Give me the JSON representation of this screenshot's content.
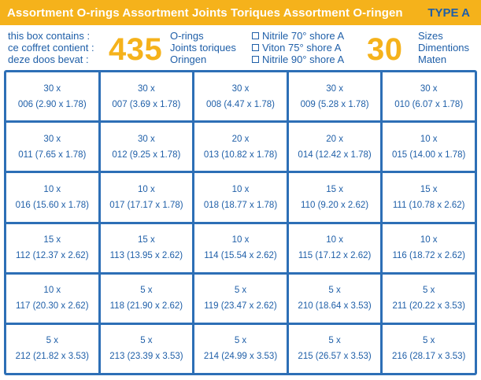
{
  "header": {
    "title": "Assortment O-rings Assortment Joints Toriques Assortment O-ringen",
    "type_label": "TYPE A"
  },
  "info": {
    "contains_lines": [
      "this box contains :",
      "ce coffret contient :",
      "deze doos bevat :"
    ],
    "oring_count": "435",
    "oring_names": [
      "O-rings",
      "Joints toriques",
      "Oringen"
    ],
    "materials": [
      "Nitrile 70° shore A",
      "Viton 75° shore A",
      "Nitrile 90° shore A"
    ],
    "size_count": "30",
    "size_names": [
      "Sizes",
      "Dimentions",
      "Maten"
    ]
  },
  "grid": {
    "cells": [
      {
        "qty": "30 x",
        "size": "006 (2.90 x 1.78)"
      },
      {
        "qty": "30 x",
        "size": "007 (3.69 x 1.78)"
      },
      {
        "qty": "30 x",
        "size": "008 (4.47 x 1.78)"
      },
      {
        "qty": "30 x",
        "size": "009 (5.28 x 1.78)"
      },
      {
        "qty": "30 x",
        "size": "010 (6.07 x 1.78)"
      },
      {
        "qty": "30 x",
        "size": "011 (7.65 x 1.78)"
      },
      {
        "qty": "30 x",
        "size": "012 (9.25 x 1.78)"
      },
      {
        "qty": "20 x",
        "size": "013 (10.82 x 1.78)"
      },
      {
        "qty": "20 x",
        "size": "014 (12.42 x 1.78)"
      },
      {
        "qty": "10 x",
        "size": "015 (14.00 x 1.78)"
      },
      {
        "qty": "10 x",
        "size": "016 (15.60 x 1.78)"
      },
      {
        "qty": "10 x",
        "size": "017 (17.17 x 1.78)"
      },
      {
        "qty": "10 x",
        "size": "018 (18.77 x 1.78)"
      },
      {
        "qty": "15 x",
        "size": "110 (9.20 x 2.62)"
      },
      {
        "qty": "15 x",
        "size": "111 (10.78 x 2.62)"
      },
      {
        "qty": "15 x",
        "size": "112 (12.37 x 2.62)"
      },
      {
        "qty": "15 x",
        "size": "113 (13.95 x 2.62)"
      },
      {
        "qty": "10 x",
        "size": "114 (15.54 x 2.62)"
      },
      {
        "qty": "10 x",
        "size": "115 (17.12 x 2.62)"
      },
      {
        "qty": "10 x",
        "size": "116 (18.72 x 2.62)"
      },
      {
        "qty": "10 x",
        "size": "117 (20.30 x 2.62)"
      },
      {
        "qty": "5 x",
        "size": "118 (21.90 x 2.62)"
      },
      {
        "qty": "5 x",
        "size": "119 (23.47 x 2.62)"
      },
      {
        "qty": "5 x",
        "size": "210 (18.64 x 3.53)"
      },
      {
        "qty": "5 x",
        "size": "211 (20.22 x 3.53)"
      },
      {
        "qty": "5 x",
        "size": "212 (21.82 x 3.53)"
      },
      {
        "qty": "5 x",
        "size": "213 (23.39 x 3.53)"
      },
      {
        "qty": "5 x",
        "size": "214 (24.99 x 3.53)"
      },
      {
        "qty": "5 x",
        "size": "215 (26.57 x 3.53)"
      },
      {
        "qty": "5 x",
        "size": "216 (28.17 x 3.53)"
      }
    ]
  },
  "colors": {
    "brand_orange": "#f5b21b",
    "brand_blue": "#1f5fa8",
    "grid_blue": "#2d6fb6"
  }
}
